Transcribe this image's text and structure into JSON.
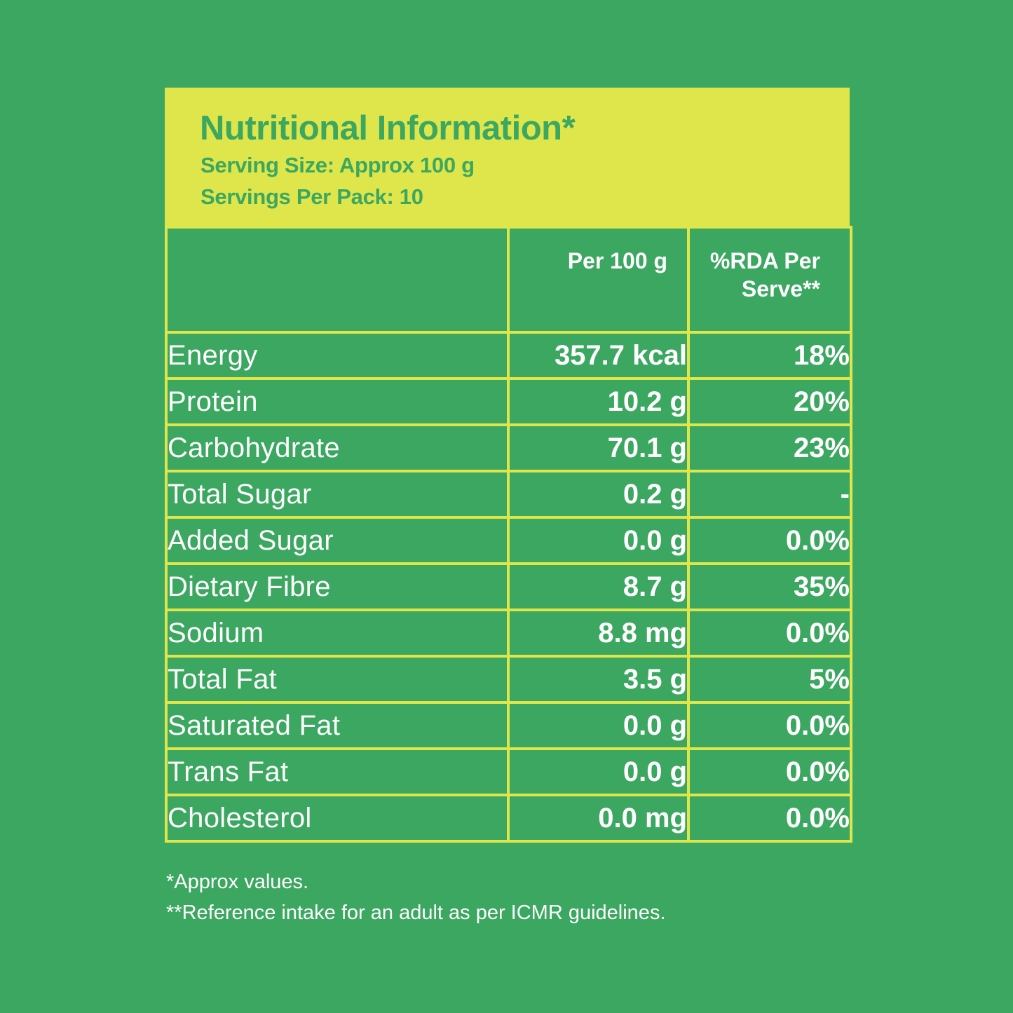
{
  "header": {
    "title": "Nutritional Information*",
    "serving_size": "Serving Size: Approx 100 g",
    "servings_per_pack": "Servings Per Pack: 10"
  },
  "table": {
    "columns": [
      "",
      "Per 100 g",
      "%RDA Per Serve**"
    ],
    "rows": [
      {
        "nutrient": "Energy",
        "per_100g": "357.7 kcal",
        "rda": "18%"
      },
      {
        "nutrient": "Protein",
        "per_100g": "10.2 g",
        "rda": "20%"
      },
      {
        "nutrient": "Carbohydrate",
        "per_100g": "70.1 g",
        "rda": "23%"
      },
      {
        "nutrient": "Total Sugar",
        "per_100g": "0.2 g",
        "rda": "-"
      },
      {
        "nutrient": "Added Sugar",
        "per_100g": "0.0 g",
        "rda": "0.0%"
      },
      {
        "nutrient": "Dietary Fibre",
        "per_100g": "8.7 g",
        "rda": "35%"
      },
      {
        "nutrient": "Sodium",
        "per_100g": "8.8 mg",
        "rda": "0.0%"
      },
      {
        "nutrient": "Total Fat",
        "per_100g": "3.5 g",
        "rda": "5%"
      },
      {
        "nutrient": "Saturated Fat",
        "per_100g": "0.0 g",
        "rda": "0.0%"
      },
      {
        "nutrient": "Trans Fat",
        "per_100g": "0.0 g",
        "rda": "0.0%"
      },
      {
        "nutrient": "Cholesterol",
        "per_100g": "0.0 mg",
        "rda": "0.0%"
      }
    ]
  },
  "footnotes": {
    "approx": "*Approx values.",
    "reference": "**Reference intake for an adult as per ICMR guidelines."
  },
  "colors": {
    "background": "#3ba760",
    "accent": "#dfe64b",
    "text": "#ffffff"
  }
}
